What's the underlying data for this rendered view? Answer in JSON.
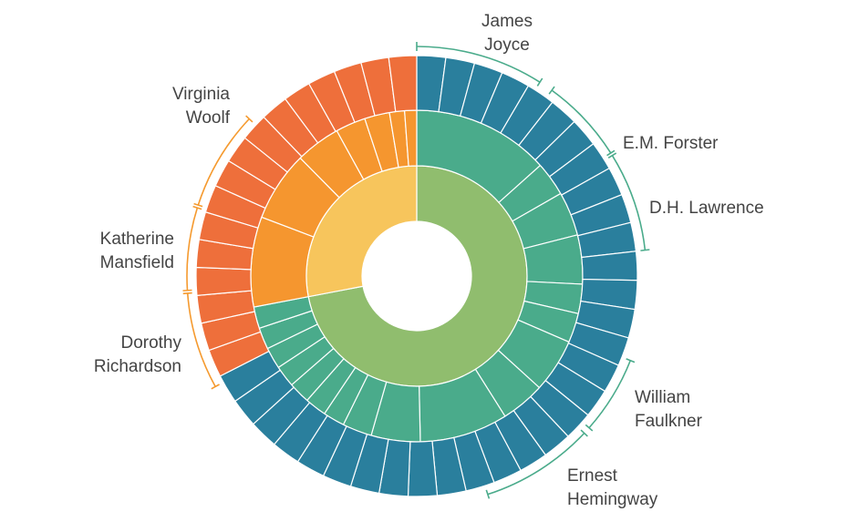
{
  "chart_data": {
    "type": "sunburst",
    "colors": {
      "green_group": {
        "inner": "#90bd6e",
        "middle": "#4aab8b",
        "outer": "#2a7f9d",
        "bracket": "#4aab8b"
      },
      "orange_group": {
        "inner": "#f7c55c",
        "middle": "#f5962f",
        "outer": "#ee6f3b",
        "bracket": "#f59a2f"
      },
      "separator": "#ffffff"
    },
    "groups": [
      {
        "key": "green",
        "inner_value": 0.72,
        "middle_segments": [
          1.4,
          0.35,
          0.45,
          0.5,
          0.3,
          0.3,
          0.55,
          0.45,
          0.9,
          0.5,
          0.3,
          0.22,
          0.22,
          0.22,
          0.22,
          0.22,
          0.22,
          0.22
        ],
        "outer_count": 32,
        "outer_start": 0.0,
        "outer_end": 0.675
      },
      {
        "key": "orange",
        "inner_value": 0.28,
        "middle_segments": [
          0.9,
          0.7,
          0.45,
          0.3,
          0.25,
          0.15,
          0.12
        ],
        "outer_count": 16,
        "outer_start": 0.675,
        "outer_end": 1.0
      }
    ],
    "authors": [
      {
        "name_lines": [
          "James",
          "Joyce"
        ],
        "group": "green",
        "arc": [
          0.0,
          0.09
        ]
      },
      {
        "name_lines": [
          "E.M. Forster"
        ],
        "group": "green",
        "arc": [
          0.1,
          0.16
        ]
      },
      {
        "name_lines": [
          "D.H. Lawrence"
        ],
        "group": "green",
        "arc": [
          0.162,
          0.232
        ]
      },
      {
        "name_lines": [
          "William",
          "Faulkner"
        ],
        "group": "green",
        "arc": [
          0.31,
          0.365
        ]
      },
      {
        "name_lines": [
          "Ernest",
          "Hemingway"
        ],
        "group": "green",
        "arc": [
          0.37,
          0.45
        ]
      },
      {
        "name_lines": [
          "Virginia",
          "Woolf"
        ],
        "group": "orange",
        "arc": [
          0.8,
          0.87
        ]
      },
      {
        "name_lines": [
          "Katherine",
          "Mansfield"
        ],
        "group": "orange",
        "arc": [
          0.74,
          0.798
        ]
      },
      {
        "name_lines": [
          "Dorothy",
          "Richardson"
        ],
        "group": "orange",
        "arc": [
          0.67,
          0.738
        ]
      }
    ]
  }
}
